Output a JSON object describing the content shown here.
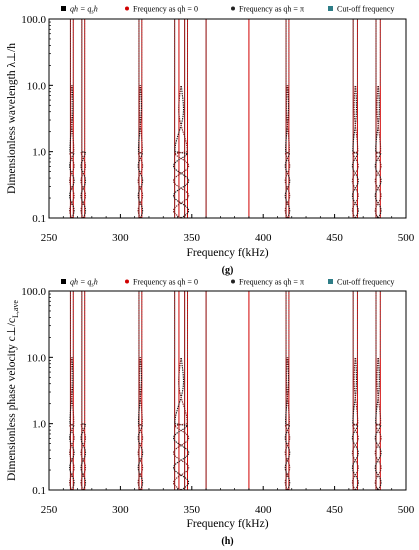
{
  "chart_data": [
    {
      "type": "scatter",
      "panel_label": "(g)",
      "legend": [
        {
          "label": "qh = q",
          "sub": "s",
          "tail": "h",
          "marker": "square",
          "color": "#000000"
        },
        {
          "label": "Frequency as qh = 0",
          "marker": "dot",
          "color": "#d00000"
        },
        {
          "label": "Frequency as qh = π",
          "marker": "dot",
          "color": "#222222"
        },
        {
          "label": "Cut-off frequency",
          "marker": "square",
          "color": "#2e7d87"
        }
      ],
      "xlabel": "Frequency   f(kHz)",
      "ylabel": "Dimensionless wavelength   λ⊥/h",
      "xlim": [
        250,
        500
      ],
      "ylim": [
        0.1,
        100
      ],
      "yscale": "log",
      "x_ticks": [
        "250",
        "300",
        "350",
        "400",
        "450",
        "500"
      ],
      "y_ticks": [
        "0.1",
        "1.0",
        "10.0",
        "100.0"
      ],
      "vertical_lines": [
        {
          "x": 265,
          "color": "#8b0000"
        },
        {
          "x": 267,
          "color": "#d00000"
        },
        {
          "x": 273,
          "color": "#8b0000"
        },
        {
          "x": 275,
          "color": "#d00000"
        },
        {
          "x": 313,
          "color": "#8b0000"
        },
        {
          "x": 315,
          "color": "#d00000"
        },
        {
          "x": 338,
          "color": "#8b0000"
        },
        {
          "x": 341,
          "color": "#d00000"
        },
        {
          "x": 345,
          "color": "#8b0000"
        },
        {
          "x": 347,
          "color": "#d00000"
        },
        {
          "x": 360,
          "color": "#8b0000"
        },
        {
          "x": 390,
          "color": "#d00000"
        },
        {
          "x": 416,
          "color": "#8b0000"
        },
        {
          "x": 418,
          "color": "#d00000"
        },
        {
          "x": 463,
          "color": "#8b0000"
        },
        {
          "x": 466,
          "color": "#d00000"
        },
        {
          "x": 479,
          "color": "#8b0000"
        },
        {
          "x": 482,
          "color": "#d00000"
        }
      ],
      "curve_pairs": [
        {
          "x1": 265,
          "x2": 267,
          "y_max": 10
        },
        {
          "x1": 273,
          "x2": 275,
          "y_max": 1
        },
        {
          "x1": 313,
          "x2": 315,
          "y_max": 10
        },
        {
          "x1": 338,
          "x2": 347,
          "y_max": 10
        },
        {
          "x1": 416,
          "x2": 418,
          "y_max": 10
        },
        {
          "x1": 463,
          "x2": 466,
          "y_max": 10
        },
        {
          "x1": 479,
          "x2": 482,
          "y_max": 10
        }
      ]
    },
    {
      "type": "scatter",
      "panel_label": "(h)",
      "legend": [
        {
          "label": "qh = q",
          "sub": "s",
          "tail": "h",
          "marker": "square",
          "color": "#000000"
        },
        {
          "label": "Frequency as qh = 0",
          "marker": "dot",
          "color": "#d00000"
        },
        {
          "label": "Frequency as qh = π",
          "marker": "dot",
          "color": "#222222"
        },
        {
          "label": "Cut-off frequency",
          "marker": "square",
          "color": "#2e7d87"
        }
      ],
      "xlabel": "Frequency   f(kHz)",
      "ylabel": "Dimensionless phase velocity   c⊥/c",
      "ylabel_sub": "L,ave",
      "xlim": [
        250,
        500
      ],
      "ylim": [
        0.1,
        100
      ],
      "yscale": "log",
      "x_ticks": [
        "250",
        "300",
        "350",
        "400",
        "450",
        "500"
      ],
      "y_ticks": [
        "0.1",
        "1.0",
        "10.0",
        "100.0"
      ],
      "vertical_lines": [
        {
          "x": 265,
          "color": "#8b0000"
        },
        {
          "x": 267,
          "color": "#d00000"
        },
        {
          "x": 273,
          "color": "#8b0000"
        },
        {
          "x": 275,
          "color": "#d00000"
        },
        {
          "x": 313,
          "color": "#8b0000"
        },
        {
          "x": 315,
          "color": "#d00000"
        },
        {
          "x": 338,
          "color": "#8b0000"
        },
        {
          "x": 341,
          "color": "#d00000"
        },
        {
          "x": 345,
          "color": "#8b0000"
        },
        {
          "x": 347,
          "color": "#d00000"
        },
        {
          "x": 360,
          "color": "#8b0000"
        },
        {
          "x": 390,
          "color": "#d00000"
        },
        {
          "x": 416,
          "color": "#8b0000"
        },
        {
          "x": 418,
          "color": "#d00000"
        },
        {
          "x": 463,
          "color": "#8b0000"
        },
        {
          "x": 466,
          "color": "#d00000"
        },
        {
          "x": 479,
          "color": "#8b0000"
        },
        {
          "x": 482,
          "color": "#d00000"
        }
      ],
      "curve_pairs": [
        {
          "x1": 265,
          "x2": 267,
          "y_max": 10
        },
        {
          "x1": 273,
          "x2": 275,
          "y_max": 1
        },
        {
          "x1": 313,
          "x2": 315,
          "y_max": 10
        },
        {
          "x1": 338,
          "x2": 347,
          "y_max": 10
        },
        {
          "x1": 416,
          "x2": 418,
          "y_max": 10
        },
        {
          "x1": 463,
          "x2": 466,
          "y_max": 10
        },
        {
          "x1": 479,
          "x2": 482,
          "y_max": 10
        }
      ]
    }
  ]
}
